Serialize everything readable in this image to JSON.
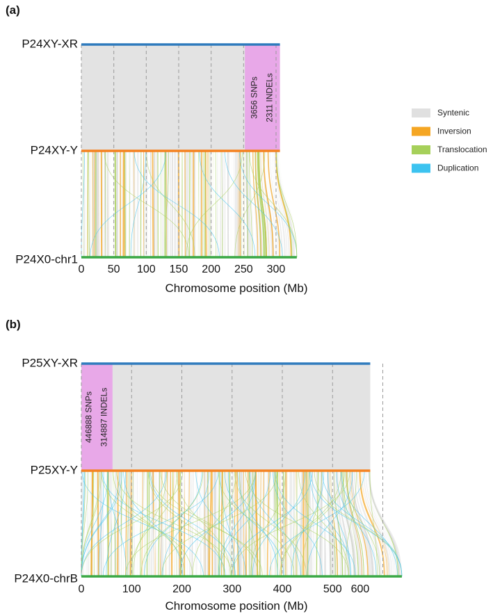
{
  "colors": {
    "syntenic": "#e0e0e0",
    "inversion": "#f5a623",
    "translocation": "#a6d05a",
    "duplication": "#3cc3f0",
    "highlight_region": "#e8a8e8",
    "track_top": "#2f7bbd",
    "track_middle": "#f58220",
    "track_bottom": "#3aa845",
    "block_fill": "#e3e3e3"
  },
  "legend": {
    "placement": "right of panel a",
    "items": [
      {
        "label": "Syntenic",
        "color": "#e0e0e0"
      },
      {
        "label": "Inversion",
        "color": "#f5a623"
      },
      {
        "label": "Translocation",
        "color": "#a6d05a"
      },
      {
        "label": "Duplication",
        "color": "#3cc3f0"
      }
    ]
  },
  "chart_data": [
    {
      "type": "synteny",
      "panel_label": "(a)",
      "xlabel": "Chromosome position (Mb)",
      "ticks": [
        "0",
        "50",
        "100",
        "150",
        "200",
        "250",
        "300"
      ],
      "tick_values": [
        0,
        50,
        100,
        150,
        200,
        250,
        300
      ],
      "tracks": [
        {
          "name": "P24XY-XR",
          "length_mb": 306
        },
        {
          "name": "P24XY-Y",
          "length_mb": 306
        },
        {
          "name": "P24X0-chr1",
          "length_mb": 332
        }
      ],
      "highlight": {
        "start_mb": 252,
        "end_mb": 306,
        "snps": "3656 SNPs",
        "indels": "2311 INDELs"
      }
    },
    {
      "type": "synteny",
      "panel_label": "(b)",
      "xlabel": "Chromosome position (Mb)",
      "ticks": [
        "0",
        "100",
        "200",
        "300",
        "400",
        "500",
        "600"
      ],
      "tick_values": [
        0,
        100,
        200,
        300,
        400,
        500,
        600
      ],
      "tracks": [
        {
          "name": "P25XY-XR",
          "length_mb": 575
        },
        {
          "name": "P25XY-Y",
          "length_mb": 575
        },
        {
          "name": "P24X0-chrB",
          "length_mb": 638
        }
      ],
      "highlight": {
        "start_mb": 0,
        "end_mb": 62,
        "snps": "446888 SNPs",
        "indels": "314887 INDELs"
      }
    }
  ]
}
